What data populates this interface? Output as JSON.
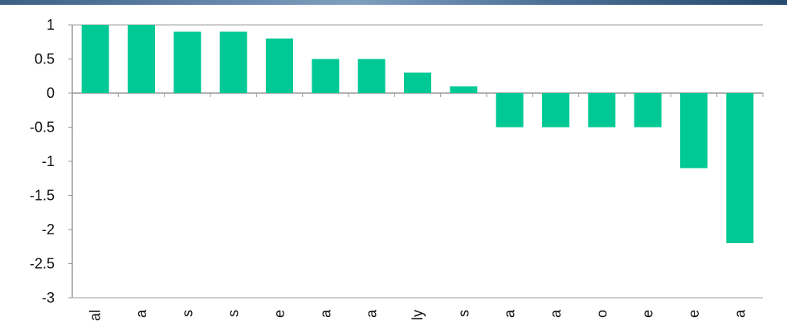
{
  "chart_data": {
    "type": "bar",
    "categories": [
      "al",
      "a",
      "s",
      "s",
      "e",
      "a",
      "a",
      "ly",
      "s",
      "a",
      "a",
      "o",
      "e",
      "e",
      "a"
    ],
    "values": [
      1,
      1,
      0.9,
      0.9,
      0.8,
      0.5,
      0.5,
      0.3,
      0.1,
      -0.5,
      -0.5,
      -0.5,
      -0.5,
      -1.1,
      -2.2
    ],
    "ylim": [
      -3,
      1
    ],
    "yticks": [
      "1",
      "0.5",
      "0",
      "-0.5",
      "-1",
      "-1.5",
      "-2",
      "-2.5",
      "-3"
    ],
    "bar_color": "#00c995",
    "grid": false
  }
}
